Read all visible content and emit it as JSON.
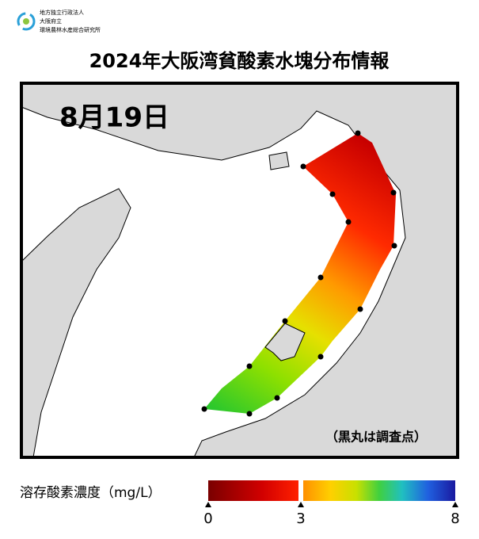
{
  "header": {
    "org_lines": [
      "地方独立行政法人",
      "大阪府立",
      "環境農林水産総合研究所"
    ],
    "title": "2024年大阪湾貧酸素水塊分布情報"
  },
  "map": {
    "date": "8月19日",
    "note": "（黒丸は調査点）"
  },
  "legend": {
    "label": "溶存酸素濃度（mg/L）",
    "ticks": [
      0,
      3,
      8
    ]
  }
}
